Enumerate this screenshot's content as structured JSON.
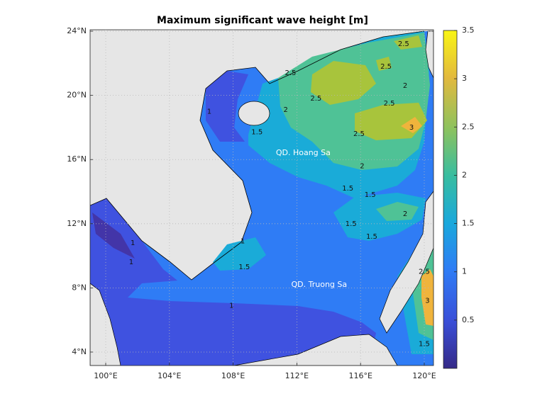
{
  "map": {
    "type": "contour",
    "title": "Maximum significant wave height [m]",
    "xlim": [
      99.02,
      120.58
    ],
    "ylim": [
      3.16,
      24.09
    ],
    "xticks": [
      {
        "value": 100,
        "label": "100°E"
      },
      {
        "value": 104,
        "label": "104°E"
      },
      {
        "value": 108,
        "label": "108°E"
      },
      {
        "value": 112,
        "label": "112°E"
      },
      {
        "value": 116,
        "label": "116°E"
      },
      {
        "value": 120,
        "label": "120°E"
      }
    ],
    "yticks": [
      {
        "value": 4,
        "label": "4°N"
      },
      {
        "value": 8,
        "label": "8°N"
      },
      {
        "value": 12,
        "label": "12°N"
      },
      {
        "value": 16,
        "label": "16°N"
      },
      {
        "value": 20,
        "label": "20°N"
      },
      {
        "value": 24,
        "label": "24°N"
      }
    ],
    "grid": true,
    "colorbar": {
      "lim": [
        0,
        3.5
      ],
      "ticks": [
        0.5,
        1,
        1.5,
        2,
        2.5,
        3,
        3.5
      ]
    },
    "contour_labels": [
      {
        "value": 2.5,
        "lon": 118.7,
        "lat": 23.2
      },
      {
        "value": 2.5,
        "lon": 117.6,
        "lat": 21.8
      },
      {
        "value": 2.5,
        "lon": 111.6,
        "lat": 21.4
      },
      {
        "value": 2,
        "lon": 118.8,
        "lat": 20.6
      },
      {
        "value": 2.5,
        "lon": 113.2,
        "lat": 19.8
      },
      {
        "value": 2.5,
        "lon": 117.8,
        "lat": 19.5
      },
      {
        "value": 3,
        "lon": 119.2,
        "lat": 18.0
      },
      {
        "value": 2.5,
        "lon": 115.9,
        "lat": 17.6
      },
      {
        "value": 1,
        "lon": 106.5,
        "lat": 19.0
      },
      {
        "value": 1.5,
        "lon": 109.5,
        "lat": 17.7
      },
      {
        "value": 2,
        "lon": 111.3,
        "lat": 19.1
      },
      {
        "value": 2,
        "lon": 116.1,
        "lat": 15.6
      },
      {
        "value": 1.5,
        "lon": 115.2,
        "lat": 14.2
      },
      {
        "value": 1.5,
        "lon": 116.6,
        "lat": 13.8
      },
      {
        "value": 2,
        "lon": 118.8,
        "lat": 12.6
      },
      {
        "value": 1.5,
        "lon": 115.4,
        "lat": 12.0
      },
      {
        "value": 1.5,
        "lon": 116.7,
        "lat": 11.2
      },
      {
        "value": 1,
        "lon": 108.6,
        "lat": 10.9
      },
      {
        "value": 1.5,
        "lon": 108.7,
        "lat": 9.3
      },
      {
        "value": 1,
        "lon": 101.6,
        "lat": 9.6
      },
      {
        "value": 1,
        "lon": 101.7,
        "lat": 10.8
      },
      {
        "value": 1,
        "lon": 107.9,
        "lat": 6.9
      },
      {
        "value": 2.5,
        "lon": 120.0,
        "lat": 9.0
      },
      {
        "value": 3,
        "lon": 120.2,
        "lat": 7.2
      },
      {
        "value": 1.5,
        "lon": 120.0,
        "lat": 4.5
      }
    ],
    "places": [
      {
        "label": "QD. Hoang Sa",
        "lon": 112.4,
        "lat": 16.4
      },
      {
        "label": "QD. Truong Sa",
        "lon": 113.4,
        "lat": 8.2
      }
    ]
  }
}
